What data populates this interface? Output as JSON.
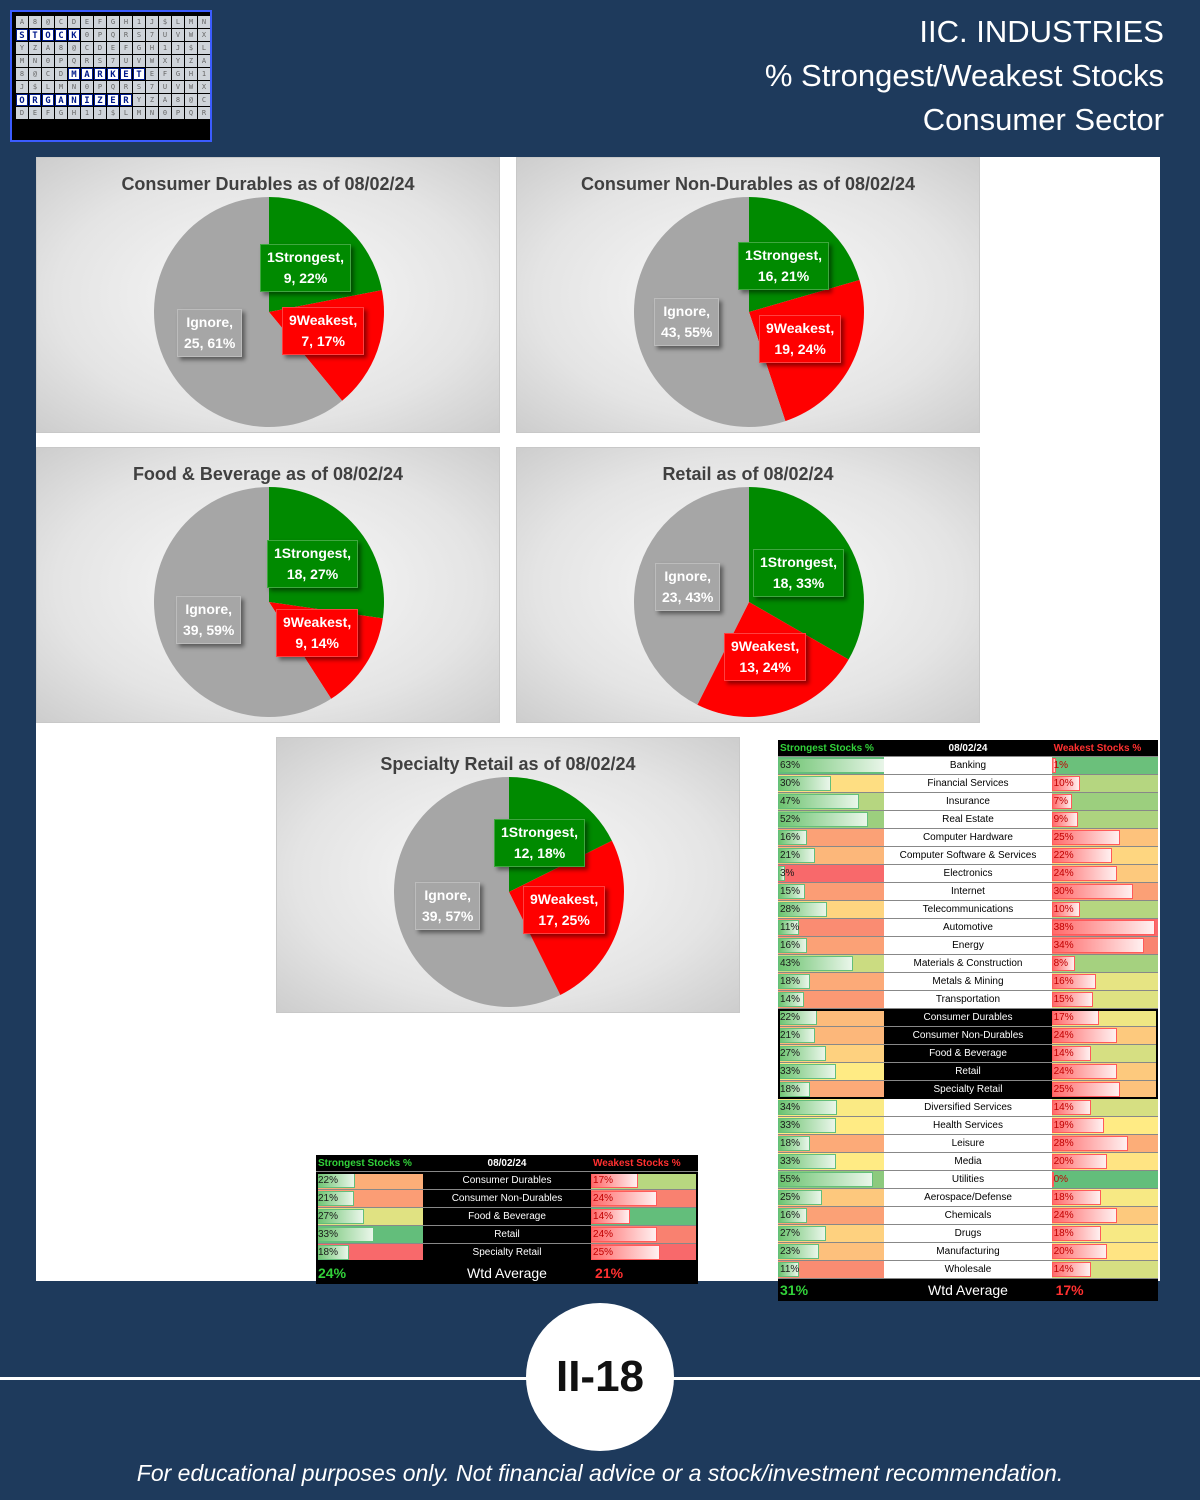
{
  "logo": {
    "line1": "STOCK",
    "line2": "MARKET",
    "line3": "ORGANIZER"
  },
  "header": {
    "line1": "IIC. INDUSTRIES",
    "line2": "% Strongest/Weakest Stocks",
    "line3": "Consumer Sector"
  },
  "colors": {
    "strongest": "#008a00",
    "weakest": "#ff0000",
    "ignore": "#a6a6a6",
    "background": "#1e3a5c"
  },
  "chart_data": [
    {
      "type": "pie",
      "title": "Consumer Durables as of 08/02/24",
      "slices": [
        {
          "name": "1Strongest",
          "value": 9,
          "pct": "22%"
        },
        {
          "name": "9Weakest",
          "value": 7,
          "pct": "17%"
        },
        {
          "name": "Ignore",
          "value": 25,
          "pct": "61%"
        }
      ]
    },
    {
      "type": "pie",
      "title": "Consumer  Non-Durables  as of 08/02/24",
      "slices": [
        {
          "name": "1Strongest",
          "value": 16,
          "pct": "21%"
        },
        {
          "name": "9Weakest",
          "value": 19,
          "pct": "24%"
        },
        {
          "name": "Ignore",
          "value": 43,
          "pct": "55%"
        }
      ]
    },
    {
      "type": "pie",
      "title": "Food & Beverage as of 08/02/24",
      "slices": [
        {
          "name": "1Strongest",
          "value": 18,
          "pct": "27%"
        },
        {
          "name": "9Weakest",
          "value": 9,
          "pct": "14%"
        },
        {
          "name": "Ignore",
          "value": 39,
          "pct": "59%"
        }
      ]
    },
    {
      "type": "pie",
      "title": "Retail as of 08/02/24",
      "slices": [
        {
          "name": "1Strongest",
          "value": 18,
          "pct": "33%"
        },
        {
          "name": "9Weakest",
          "value": 13,
          "pct": "24%"
        },
        {
          "name": "Ignore",
          "value": 23,
          "pct": "43%"
        }
      ]
    },
    {
      "type": "pie",
      "title": "Specialty Retail as of 08/02/24",
      "slices": [
        {
          "name": "1Strongest",
          "value": 12,
          "pct": "18%"
        },
        {
          "name": "9Weakest",
          "value": 17,
          "pct": "25%"
        },
        {
          "name": "Ignore",
          "value": 39,
          "pct": "57%"
        }
      ]
    },
    {
      "type": "table",
      "headers": [
        "Strongest Stocks %",
        "08/02/24",
        "Weakest Stocks %"
      ],
      "rows": [
        [
          "22%",
          "Consumer Durables",
          "17%"
        ],
        [
          "21%",
          "Consumer Non-Durables",
          "24%"
        ],
        [
          "27%",
          "Food & Beverage",
          "14%"
        ],
        [
          "33%",
          "Retail",
          "24%"
        ],
        [
          "18%",
          "Specialty Retail",
          "25%"
        ]
      ],
      "summary": [
        "24%",
        "Wtd Average",
        "21%"
      ]
    },
    {
      "type": "table",
      "headers": [
        "Strongest Stocks %",
        "08/02/24",
        "Weakest Stocks %"
      ],
      "rows": [
        [
          "63%",
          "Banking",
          "1%"
        ],
        [
          "30%",
          "Financial Services",
          "10%"
        ],
        [
          "47%",
          "Insurance",
          "7%"
        ],
        [
          "52%",
          "Real Estate",
          "9%"
        ],
        [
          "16%",
          "Computer Hardware",
          "25%"
        ],
        [
          "21%",
          "Computer Software & Services",
          "22%"
        ],
        [
          "3%",
          "Electronics",
          "24%"
        ],
        [
          "15%",
          "Internet",
          "30%"
        ],
        [
          "28%",
          "Telecommunications",
          "10%"
        ],
        [
          "11%",
          "Automotive",
          "38%"
        ],
        [
          "16%",
          "Energy",
          "34%"
        ],
        [
          "43%",
          "Materials & Construction",
          "8%"
        ],
        [
          "18%",
          "Metals & Mining",
          "16%"
        ],
        [
          "14%",
          "Transportation",
          "15%"
        ],
        [
          "22%",
          "Consumer Durables",
          "17%"
        ],
        [
          "21%",
          "Consumer Non-Durables",
          "24%"
        ],
        [
          "27%",
          "Food & Beverage",
          "14%"
        ],
        [
          "33%",
          "Retail",
          "24%"
        ],
        [
          "18%",
          "Specialty Retail",
          "25%"
        ],
        [
          "34%",
          "Diversified Services",
          "14%"
        ],
        [
          "33%",
          "Health Services",
          "19%"
        ],
        [
          "18%",
          "Leisure",
          "28%"
        ],
        [
          "33%",
          "Media",
          "20%"
        ],
        [
          "55%",
          "Utilities",
          "0%"
        ],
        [
          "25%",
          "Aerospace/Defense",
          "18%"
        ],
        [
          "16%",
          "Chemicals",
          "24%"
        ],
        [
          "27%",
          "Drugs",
          "18%"
        ],
        [
          "23%",
          "Manufacturing",
          "20%"
        ],
        [
          "11%",
          "Wholesale",
          "14%"
        ]
      ],
      "summary": [
        "31%",
        "Wtd Average",
        "17%"
      ]
    }
  ],
  "page_number": "II-18",
  "footer": "For educational purposes only. Not financial advice or a stock/investment recommendation."
}
